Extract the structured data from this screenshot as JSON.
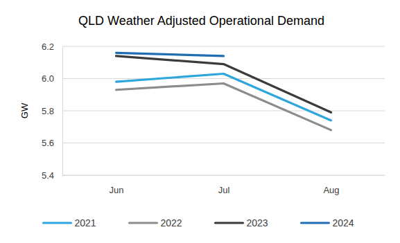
{
  "chart_data": {
    "type": "line",
    "title": "QLD Weather Adjusted Operational Demand",
    "y_label": "GW",
    "categories": [
      "Jun",
      "Jul",
      "Aug"
    ],
    "series": [
      {
        "name": "2021",
        "color": "#2ea6dc",
        "values": [
          5.98,
          6.03,
          5.74
        ]
      },
      {
        "name": "2022",
        "color": "#8c8c8c",
        "values": [
          5.93,
          5.97,
          5.68
        ]
      },
      {
        "name": "2023",
        "color": "#3b3b3b",
        "values": [
          6.14,
          6.09,
          5.79
        ]
      },
      {
        "name": "2024",
        "color": "#1f6db3",
        "values": [
          6.16,
          6.14,
          null
        ]
      }
    ],
    "ylim": [
      5.4,
      6.2
    ],
    "yticks": [
      5.4,
      5.6,
      5.8,
      {
        "value": 6,
        "label": "6.0"
      },
      6.2
    ],
    "grid": true,
    "legend": "bottom"
  }
}
